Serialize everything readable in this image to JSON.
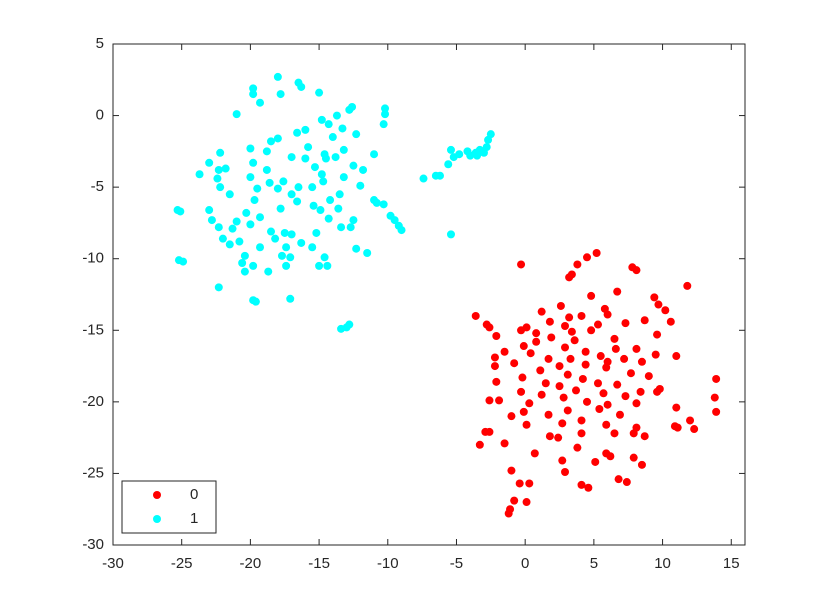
{
  "chart_data": {
    "type": "scatter",
    "xlim": [
      -30,
      16
    ],
    "ylim": [
      -30,
      5
    ],
    "xticks": [
      -30,
      -25,
      -20,
      -15,
      -10,
      -5,
      0,
      5,
      10,
      15
    ],
    "yticks": [
      -30,
      -25,
      -20,
      -15,
      -10,
      -5,
      0,
      5
    ],
    "legend": "bottom-left",
    "series": [
      {
        "name": "0",
        "color": "#ff0000",
        "x": [
          5.2,
          4.5,
          -0.3,
          3.8,
          3.4,
          3.2,
          7.8,
          8.1,
          11.8,
          6.7,
          4.8,
          9.4,
          2.6,
          9.7,
          5.8,
          10.2,
          1.2,
          6,
          -3.6,
          4.1,
          3.2,
          8.7,
          10.6,
          1.8,
          5.3,
          -2.8,
          -2.6,
          0.1,
          2.9,
          7.3,
          3.4,
          4.8,
          -0.3,
          0.8,
          9.6,
          -2.1,
          1.9,
          6.5,
          3.6,
          0.8,
          -0.1,
          2.9,
          6.6,
          8.1,
          4.4,
          -1.5,
          9.5,
          11,
          0.4,
          5.5,
          -2.2,
          1.7,
          3.3,
          7.2,
          6,
          8.5,
          -0.8,
          2.5,
          4.4,
          -2.2,
          1.1,
          5.9,
          3.1,
          7.7,
          -0.2,
          4.2,
          9,
          13.9,
          1.5,
          5.3,
          -2.1,
          2.5,
          6.7,
          -0.3,
          3.7,
          8.4,
          9.8,
          9.6,
          1.2,
          5.7,
          13.8,
          -2.6,
          -1.9,
          2.8,
          7.3,
          0.3,
          4.5,
          6,
          8.1,
          -0.1,
          3.1,
          5.4,
          11,
          13.9,
          1.7,
          6.9,
          -1,
          4.1,
          12,
          0.1,
          2.7,
          5.9,
          -2.6,
          -2.9,
          8.1,
          11.1,
          10.9,
          12.3,
          1.8,
          4.1,
          6.5,
          7.9,
          2.4,
          8.7,
          -3.3,
          -1.5,
          3.8,
          0.7,
          5.9,
          6.2,
          7.9,
          5.1,
          2.7,
          8.5,
          -1,
          2.9,
          6.8,
          7.4,
          4.1,
          4.6,
          -0.4,
          0.3,
          -0.8,
          0.1,
          -1.1,
          -1.2
        ],
        "values": [
          -9.6,
          -9.9,
          -10.4,
          -10.4,
          -11.1,
          -11.3,
          -10.6,
          -10.8,
          -11.9,
          -12.3,
          -12.6,
          -12.7,
          -13.3,
          -13.2,
          -13.5,
          -13.6,
          -13.7,
          -13.9,
          -14,
          -14,
          -14.1,
          -14.3,
          -14.4,
          -14.4,
          -14.6,
          -14.6,
          -14.8,
          -14.8,
          -14.7,
          -14.5,
          -15.1,
          -15,
          -15,
          -15.2,
          -15.3,
          -15.4,
          -15.5,
          -15.6,
          -15.7,
          -15.8,
          -16.1,
          -16.2,
          -16.3,
          -16.3,
          -16.5,
          -16.5,
          -16.7,
          -16.8,
          -16.6,
          -16.8,
          -16.9,
          -17,
          -17,
          -17,
          -17.2,
          -17.2,
          -17.3,
          -17.5,
          -17.4,
          -17.5,
          -17.8,
          -17.6,
          -18.1,
          -18,
          -18.3,
          -18.4,
          -18.2,
          -18.4,
          -18.7,
          -18.7,
          -18.6,
          -18.9,
          -18.8,
          -19.3,
          -19.2,
          -19.3,
          -19.1,
          -19.3,
          -19.5,
          -19.4,
          -19.7,
          -19.9,
          -19.9,
          -19.7,
          -19.6,
          -20.1,
          -20,
          -20.2,
          -20.1,
          -20.7,
          -20.6,
          -20.5,
          -20.4,
          -20.7,
          -20.9,
          -20.9,
          -21,
          -21.3,
          -21.3,
          -21.6,
          -21.5,
          -21.6,
          -22.1,
          -22.1,
          -21.8,
          -21.8,
          -21.7,
          -21.9,
          -22.4,
          -22.2,
          -22.2,
          -22.2,
          -22.5,
          -22.4,
          -23,
          -22.9,
          -23.2,
          -23.6,
          -23.6,
          -23.8,
          -23.9,
          -24.2,
          -24.1,
          -24.4,
          -24.8,
          -24.9,
          -25.4,
          -25.6,
          -25.8,
          -26,
          -25.7,
          -25.7,
          -26.9,
          -27,
          -27.5,
          -27.8
        ]
      },
      {
        "name": "1",
        "color": "#00ffff",
        "x": [
          -18,
          -16.5,
          -16.3,
          -19.8,
          -19.8,
          -15,
          -17.8,
          -19.3,
          -12.6,
          -12.8,
          -10.2,
          -10.2,
          -21,
          -14.8,
          -13.7,
          -14.3,
          -13.3,
          -10.3,
          -16,
          -14,
          -18,
          -16.6,
          -12.3,
          -18.5,
          -15.8,
          -20,
          -18.8,
          -22.2,
          -13.2,
          -14.6,
          -13.8,
          -11,
          -23,
          -19.8,
          -17,
          -16,
          -14.5,
          -12.5,
          -22.3,
          -22.4,
          -21.8,
          -18.8,
          -15.3,
          -14.8,
          -11.8,
          -23.7,
          -20,
          -17.6,
          -18.6,
          -13.2,
          -14.7,
          -12,
          -22.2,
          -18,
          -16.5,
          -15.5,
          -19.5,
          -21.5,
          -17,
          -13.5,
          -14.2,
          -11,
          -19.7,
          -16.6,
          -15.4,
          -10.8,
          -10.3,
          -25.3,
          -25.1,
          -23,
          -20.3,
          -17.8,
          -14.9,
          -13.6,
          -19.3,
          -22.8,
          -21,
          -14.3,
          -12.5,
          -9.8,
          -9.5,
          -9.2,
          -9,
          -22.3,
          -20,
          -21.3,
          -18.5,
          -17.5,
          -17,
          -15.2,
          -13.4,
          -12.7,
          -20.8,
          -22,
          -18.2,
          -16.3,
          -17.4,
          -19.3,
          -15.5,
          -21.5,
          -12.3,
          -11.5,
          -20.4,
          -17.7,
          -17.1,
          -14.6,
          -25.2,
          -24.9,
          -20.6,
          -19.8,
          -17.4,
          -15,
          -14.4,
          -18.7,
          -20.4,
          -22.3,
          -17.1,
          -19.8,
          -19.6,
          -12.8,
          -13,
          -13.4,
          -2.5,
          -2.7,
          -2.8,
          -3,
          -3.3,
          -3.6,
          -3.5,
          -4,
          -4.2,
          -4.8,
          -5.2,
          -5.4,
          -5.6,
          -6.2,
          -6.5,
          -7.4,
          -5.4
        ],
        "values": [
          2.7,
          2.3,
          2,
          1.9,
          1.5,
          1.6,
          1.5,
          0.9,
          0.6,
          0.4,
          0.5,
          0.1,
          0.1,
          -0.3,
          0,
          -0.6,
          -0.9,
          -0.6,
          -1,
          -1.5,
          -1.6,
          -1.2,
          -1.3,
          -1.8,
          -2.2,
          -2.3,
          -2.5,
          -2.6,
          -2.4,
          -2.7,
          -2.9,
          -2.7,
          -3.3,
          -3.3,
          -2.9,
          -3,
          -3,
          -3.5,
          -3.8,
          -4.4,
          -3.7,
          -3.8,
          -3.6,
          -4.1,
          -3.8,
          -4.1,
          -4.3,
          -4.6,
          -4.7,
          -4.3,
          -4.6,
          -4.9,
          -5,
          -5.1,
          -5,
          -5,
          -5.1,
          -5.5,
          -5.5,
          -5.5,
          -5.9,
          -5.9,
          -5.9,
          -6,
          -6.3,
          -6.1,
          -6.2,
          -6.6,
          -6.7,
          -6.6,
          -6.8,
          -6.5,
          -6.6,
          -6.5,
          -7.1,
          -7.3,
          -7.4,
          -7.2,
          -7.3,
          -7,
          -7.3,
          -7.7,
          -8,
          -7.8,
          -7.6,
          -7.9,
          -8.1,
          -8.2,
          -8.3,
          -8.2,
          -7.8,
          -7.8,
          -8.8,
          -8.6,
          -8.6,
          -8.9,
          -9.2,
          -9.2,
          -9.2,
          -9,
          -9.3,
          -9.6,
          -9.8,
          -9.8,
          -9.9,
          -9.9,
          -10.1,
          -10.2,
          -10.3,
          -10.5,
          -10.5,
          -10.5,
          -10.5,
          -10.9,
          -10.9,
          -12,
          -12.8,
          -12.9,
          -13,
          -14.6,
          -14.8,
          -14.9,
          -1.3,
          -1.7,
          -2.2,
          -2.6,
          -2.4,
          -2.6,
          -2.8,
          -2.8,
          -2.5,
          -2.7,
          -2.9,
          -2.4,
          -3.4,
          -4.2,
          -4.2,
          -4.4,
          -8.3
        ]
      }
    ]
  }
}
